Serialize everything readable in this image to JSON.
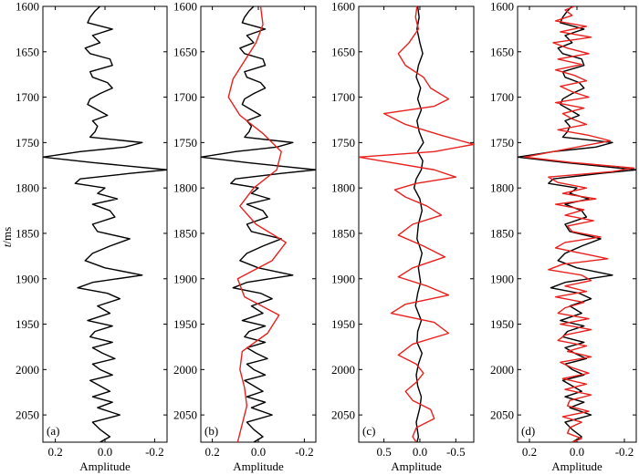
{
  "figure": {
    "ylabel_italic": "t",
    "ylabel_rest": "/ms"
  },
  "chart_data": [
    {
      "type": "line",
      "panel": "(a)",
      "xlabel": "Amplitude",
      "xlim": [
        0.25,
        -0.25
      ],
      "xticks": [
        0.2,
        0.0,
        -0.2
      ],
      "xtick_labels": [
        "0.2",
        "0.0",
        "-0.2"
      ],
      "ylim": [
        1600,
        2080
      ],
      "yticks": [
        1600,
        1650,
        1700,
        1750,
        1800,
        1850,
        1900,
        1950,
        2000,
        2050
      ],
      "ytick_labels": [
        "1600",
        "1650",
        "1700",
        "1750",
        "1800",
        "1850",
        "1900",
        "1950",
        "2000",
        "2050"
      ],
      "ylabel": "t/ms",
      "series": [
        {
          "color": "#000000",
          "y": [
            1600,
            1605,
            1612,
            1618,
            1625,
            1632,
            1640,
            1646,
            1652,
            1658,
            1665,
            1672,
            1678,
            1684,
            1690,
            1696,
            1702,
            1708,
            1714,
            1720,
            1726,
            1732,
            1738,
            1744,
            1750,
            1755,
            1760,
            1766,
            1772,
            1776,
            1780,
            1784,
            1790,
            1795,
            1800,
            1806,
            1812,
            1818,
            1825,
            1832,
            1840,
            1848,
            1856,
            1864,
            1872,
            1880,
            1888,
            1896,
            1904,
            1910,
            1916,
            1922,
            1930,
            1938,
            1946,
            1952,
            1958,
            1964,
            1970,
            1976,
            1982,
            1988,
            1994,
            2000,
            2006,
            2012,
            2018,
            2024,
            2030,
            2036,
            2042,
            2050,
            2058,
            2066,
            2074,
            2080
          ],
          "x": [
            0.02,
            0.04,
            0.06,
            0.07,
            -0.03,
            0.05,
            0.02,
            0.08,
            0.06,
            -0.02,
            -0.03,
            0.06,
            0.05,
            -0.01,
            -0.03,
            0.02,
            0.06,
            0.07,
            0.03,
            -0.01,
            0.05,
            0.03,
            0.04,
            0.06,
            -0.15,
            -0.08,
            0.1,
            0.25,
            0.05,
            -0.1,
            -0.25,
            -0.1,
            0.1,
            0.12,
            0.0,
            0.03,
            -0.05,
            0.05,
            -0.02,
            -0.04,
            0.05,
            0.03,
            -0.1,
            -0.02,
            0.05,
            0.08,
            0.0,
            -0.15,
            0.05,
            0.11,
            -0.01,
            -0.06,
            0.03,
            -0.02,
            0.07,
            -0.03,
            0.04,
            0.06,
            -0.03,
            0.05,
            0.01,
            -0.04,
            0.05,
            0.02,
            -0.03,
            0.06,
            0.02,
            -0.02,
            0.05,
            -0.03,
            0.03,
            -0.06,
            0.05,
            0.02,
            -0.02,
            0.02
          ]
        }
      ]
    },
    {
      "type": "line",
      "panel": "(b)",
      "xlabel": "Amplitude",
      "xlim": [
        0.25,
        -0.25
      ],
      "xticks": [
        0.2,
        0.0,
        -0.2
      ],
      "xtick_labels": [
        "0.2",
        "0.0",
        "-0.2"
      ],
      "ylim": [
        1600,
        2080
      ],
      "yticks": [
        1600,
        1650,
        1700,
        1750,
        1800,
        1850,
        1900,
        1950,
        2000,
        2050
      ],
      "ytick_labels": [
        "1600",
        "1650",
        "1700",
        "1750",
        "1800",
        "1850",
        "1900",
        "1950",
        "2000",
        "2050"
      ],
      "series": [
        {
          "color": "#000000",
          "y": [
            1600,
            1605,
            1612,
            1618,
            1625,
            1632,
            1640,
            1646,
            1652,
            1658,
            1665,
            1672,
            1678,
            1684,
            1690,
            1696,
            1702,
            1708,
            1714,
            1720,
            1726,
            1732,
            1738,
            1744,
            1750,
            1755,
            1760,
            1766,
            1772,
            1776,
            1780,
            1784,
            1790,
            1795,
            1800,
            1806,
            1812,
            1818,
            1825,
            1832,
            1840,
            1848,
            1856,
            1864,
            1872,
            1880,
            1888,
            1896,
            1904,
            1910,
            1916,
            1922,
            1930,
            1938,
            1946,
            1952,
            1958,
            1964,
            1970,
            1976,
            1982,
            1988,
            1994,
            2000,
            2006,
            2012,
            2018,
            2024,
            2030,
            2036,
            2042,
            2050,
            2058,
            2066,
            2074,
            2080
          ],
          "x": [
            0.02,
            0.04,
            0.06,
            0.07,
            -0.03,
            0.05,
            0.02,
            0.08,
            0.06,
            -0.02,
            -0.03,
            0.06,
            0.05,
            -0.01,
            -0.03,
            0.02,
            0.06,
            0.07,
            0.03,
            -0.01,
            0.05,
            0.03,
            0.04,
            0.06,
            -0.15,
            -0.08,
            0.1,
            0.25,
            0.05,
            -0.1,
            -0.25,
            -0.1,
            0.1,
            0.12,
            0.0,
            0.03,
            -0.05,
            0.05,
            -0.02,
            -0.04,
            0.05,
            0.03,
            -0.1,
            -0.02,
            0.05,
            0.08,
            0.0,
            -0.15,
            0.05,
            0.11,
            -0.01,
            -0.06,
            0.03,
            -0.02,
            0.07,
            -0.03,
            0.04,
            0.06,
            -0.03,
            0.05,
            0.01,
            -0.04,
            0.05,
            0.02,
            -0.03,
            0.06,
            0.02,
            -0.02,
            0.05,
            -0.03,
            0.03,
            -0.06,
            0.05,
            0.02,
            -0.02,
            0.02
          ]
        },
        {
          "color": "#e8211e",
          "y": [
            1600,
            1620,
            1640,
            1660,
            1680,
            1700,
            1720,
            1740,
            1760,
            1780,
            1800,
            1820,
            1840,
            1860,
            1880,
            1900,
            1920,
            1940,
            1960,
            1980,
            2000,
            2020,
            2040,
            2060,
            2080
          ],
          "x": [
            -0.01,
            -0.02,
            0.01,
            0.06,
            0.11,
            0.13,
            0.08,
            -0.02,
            -0.1,
            -0.08,
            0.02,
            0.08,
            0.01,
            -0.12,
            -0.06,
            0.09,
            0.06,
            -0.09,
            -0.04,
            0.07,
            0.08,
            0.06,
            0.05,
            0.07,
            0.09
          ]
        }
      ]
    },
    {
      "type": "line",
      "panel": "(c)",
      "xlabel": "Amplitude",
      "xlim": [
        0.85,
        -0.75
      ],
      "xticks": [
        0.5,
        0.0,
        -0.5
      ],
      "xtick_labels": [
        "0.5",
        "0.0",
        "-0.5"
      ],
      "ylim": [
        1600,
        2080
      ],
      "yticks": [
        1600,
        1650,
        1700,
        1750,
        1800,
        1850,
        1900,
        1950,
        2000,
        2050
      ],
      "ytick_labels": [
        "1600",
        "1650",
        "1700",
        "1750",
        "1800",
        "1850",
        "1900",
        "1950",
        "2000",
        "2050"
      ],
      "series": [
        {
          "color": "#000000",
          "y": [
            1600,
            1612,
            1625,
            1640,
            1652,
            1665,
            1678,
            1690,
            1702,
            1714,
            1726,
            1738,
            1750,
            1760,
            1770,
            1780,
            1790,
            1800,
            1812,
            1825,
            1840,
            1856,
            1872,
            1888,
            1904,
            1916,
            1930,
            1946,
            1958,
            1970,
            1982,
            1994,
            2006,
            2018,
            2030,
            2042,
            2058,
            2074,
            2080
          ],
          "x": [
            0.03,
            0.01,
            0.04,
            0.0,
            -0.04,
            0.02,
            0.05,
            -0.01,
            0.03,
            -0.02,
            0.04,
            0.01,
            -0.05,
            0.03,
            -0.04,
            -0.02,
            0.05,
            0.08,
            0.0,
            -0.03,
            0.02,
            0.04,
            -0.03,
            0.02,
            -0.01,
            0.03,
            0.06,
            -0.02,
            0.03,
            0.04,
            -0.03,
            0.02,
            0.05,
            0.03,
            -0.02,
            0.0,
            0.05,
            0.02,
            0.04
          ]
        },
        {
          "color": "#e8211e",
          "y": [
            1600,
            1612,
            1625,
            1640,
            1652,
            1665,
            1678,
            1690,
            1702,
            1710,
            1718,
            1730,
            1742,
            1752,
            1760,
            1766,
            1772,
            1780,
            1788,
            1795,
            1802,
            1810,
            1820,
            1830,
            1840,
            1852,
            1864,
            1876,
            1888,
            1898,
            1908,
            1918,
            1928,
            1938,
            1948,
            1960,
            1972,
            1984,
            1994,
            2004,
            2014,
            2024,
            2034,
            2044,
            2054,
            2064,
            2074,
            2080
          ],
          "x": [
            0.04,
            0.06,
            0.02,
            0.15,
            0.3,
            0.2,
            -0.05,
            -0.15,
            -0.4,
            -0.2,
            0.5,
            0.2,
            -0.3,
            -0.75,
            -0.2,
            0.85,
            0.4,
            -0.2,
            -0.5,
            0.05,
            0.35,
            0.2,
            -0.1,
            -0.3,
            0.1,
            0.3,
            -0.05,
            -0.35,
            0.1,
            0.3,
            -0.1,
            -0.4,
            0.2,
            0.4,
            -0.2,
            -0.4,
            0.1,
            0.3,
            0.05,
            -0.05,
            0.05,
            0.2,
            0.1,
            -0.15,
            -0.2,
            0.05,
            0.1,
            0.05
          ]
        }
      ]
    },
    {
      "type": "line",
      "panel": "(d)",
      "xlabel": "Amplitude",
      "xlim": [
        0.25,
        -0.25
      ],
      "xticks": [
        0.2,
        0.0,
        -0.2
      ],
      "xtick_labels": [
        "0.2",
        "0.0",
        "-0.2"
      ],
      "ylim": [
        1600,
        2080
      ],
      "yticks": [
        1600,
        1650,
        1700,
        1750,
        1800,
        1850,
        1900,
        1950,
        2000,
        2050
      ],
      "ytick_labels": [
        "1600",
        "1650",
        "1700",
        "1750",
        "1800",
        "1850",
        "1900",
        "1950",
        "2000",
        "2050"
      ],
      "series": [
        {
          "color": "#000000",
          "y": [
            1600,
            1605,
            1612,
            1618,
            1625,
            1632,
            1640,
            1646,
            1652,
            1658,
            1665,
            1672,
            1678,
            1684,
            1690,
            1696,
            1702,
            1708,
            1714,
            1720,
            1726,
            1732,
            1738,
            1744,
            1750,
            1755,
            1760,
            1766,
            1772,
            1776,
            1780,
            1784,
            1790,
            1795,
            1800,
            1806,
            1812,
            1818,
            1825,
            1832,
            1840,
            1848,
            1856,
            1864,
            1872,
            1880,
            1888,
            1896,
            1904,
            1910,
            1916,
            1922,
            1930,
            1938,
            1946,
            1952,
            1958,
            1964,
            1970,
            1976,
            1982,
            1988,
            1994,
            2000,
            2006,
            2012,
            2018,
            2024,
            2030,
            2036,
            2042,
            2050,
            2058,
            2066,
            2074,
            2080
          ],
          "x": [
            0.02,
            0.04,
            0.06,
            0.07,
            -0.03,
            0.05,
            0.02,
            0.08,
            0.06,
            -0.02,
            -0.03,
            0.06,
            0.05,
            -0.01,
            -0.03,
            0.02,
            0.06,
            0.07,
            0.03,
            -0.01,
            0.05,
            0.03,
            0.04,
            0.06,
            -0.15,
            -0.08,
            0.1,
            0.25,
            0.05,
            -0.1,
            -0.25,
            -0.1,
            0.1,
            0.12,
            0.0,
            0.03,
            -0.05,
            0.05,
            -0.02,
            -0.04,
            0.05,
            0.03,
            -0.1,
            -0.02,
            0.05,
            0.08,
            0.0,
            -0.15,
            0.05,
            0.11,
            -0.01,
            -0.06,
            0.03,
            -0.02,
            0.07,
            -0.03,
            0.04,
            0.06,
            -0.03,
            0.05,
            0.01,
            -0.04,
            0.05,
            0.02,
            -0.03,
            0.06,
            0.02,
            -0.02,
            0.05,
            -0.03,
            0.03,
            -0.06,
            0.05,
            0.02,
            -0.02,
            0.02
          ]
        },
        {
          "color": "#e8211e",
          "y": [
            1600,
            1604,
            1610,
            1616,
            1622,
            1628,
            1634,
            1640,
            1646,
            1652,
            1658,
            1664,
            1670,
            1676,
            1682,
            1688,
            1694,
            1700,
            1706,
            1712,
            1718,
            1724,
            1730,
            1736,
            1742,
            1748,
            1754,
            1760,
            1766,
            1772,
            1778,
            1782,
            1788,
            1794,
            1800,
            1806,
            1812,
            1818,
            1824,
            1830,
            1836,
            1842,
            1848,
            1854,
            1860,
            1866,
            1872,
            1878,
            1884,
            1890,
            1896,
            1902,
            1908,
            1914,
            1920,
            1926,
            1932,
            1938,
            1944,
            1950,
            1956,
            1962,
            1968,
            1974,
            1980,
            1986,
            1992,
            1998,
            2004,
            2010,
            2016,
            2022,
            2028,
            2034,
            2040,
            2046,
            2052,
            2058,
            2064,
            2070,
            2076,
            2080
          ],
          "x": [
            0.01,
            0.05,
            0.02,
            0.09,
            -0.04,
            0.07,
            -0.06,
            0.1,
            0.04,
            -0.05,
            0.08,
            -0.02,
            0.09,
            0.01,
            -0.04,
            0.07,
            0.02,
            -0.05,
            0.09,
            -0.03,
            0.06,
            0.02,
            -0.04,
            0.08,
            -0.05,
            -0.14,
            -0.02,
            0.1,
            0.22,
            0.02,
            -0.24,
            -0.15,
            0.12,
            0.08,
            -0.04,
            0.06,
            -0.08,
            0.09,
            -0.03,
            0.05,
            -0.07,
            0.04,
            0.02,
            -0.1,
            0.05,
            0.09,
            -0.02,
            -0.13,
            0.06,
            0.12,
            -0.02,
            -0.06,
            0.05,
            -0.04,
            0.09,
            -0.03,
            0.05,
            0.08,
            -0.05,
            0.07,
            -0.06,
            0.05,
            0.08,
            -0.04,
            0.04,
            -0.06,
            0.07,
            0.02,
            -0.05,
            0.06,
            -0.04,
            0.05,
            -0.06,
            0.03,
            0.04,
            -0.05,
            0.06,
            -0.02,
            0.03,
            0.04,
            -0.02,
            0.02
          ]
        }
      ]
    }
  ]
}
